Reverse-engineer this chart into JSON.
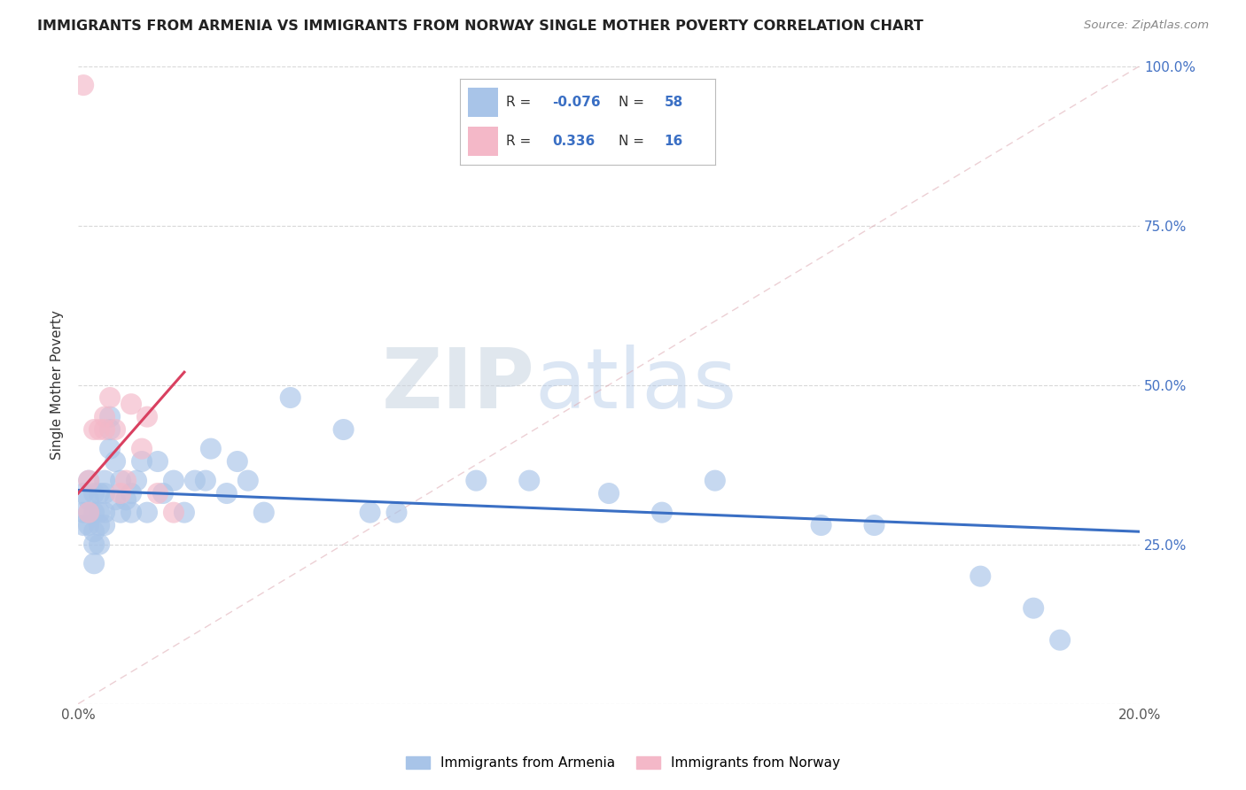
{
  "title": "IMMIGRANTS FROM ARMENIA VS IMMIGRANTS FROM NORWAY SINGLE MOTHER POVERTY CORRELATION CHART",
  "source": "Source: ZipAtlas.com",
  "ylabel": "Single Mother Poverty",
  "xlim": [
    0.0,
    0.2
  ],
  "ylim": [
    0.0,
    1.0
  ],
  "armenia_R": -0.076,
  "armenia_N": 58,
  "norway_R": 0.336,
  "norway_N": 16,
  "armenia_color": "#a8c4e8",
  "norway_color": "#f4b8c8",
  "armenia_line_color": "#3a6fc4",
  "norway_line_color": "#d94060",
  "diag_line_color": "#e0a0b0",
  "legend_label_armenia": "Immigrants from Armenia",
  "legend_label_norway": "Immigrants from Norway",
  "background_color": "#ffffff",
  "grid_color": "#d8d8d8",
  "watermark_zip": "ZIP",
  "watermark_atlas": "atlas",
  "armenia_x": [
    0.001,
    0.001,
    0.001,
    0.002,
    0.002,
    0.002,
    0.002,
    0.003,
    0.003,
    0.003,
    0.003,
    0.003,
    0.004,
    0.004,
    0.004,
    0.004,
    0.005,
    0.005,
    0.005,
    0.005,
    0.006,
    0.006,
    0.006,
    0.007,
    0.007,
    0.008,
    0.008,
    0.009,
    0.01,
    0.01,
    0.011,
    0.012,
    0.013,
    0.015,
    0.016,
    0.018,
    0.02,
    0.022,
    0.024,
    0.025,
    0.028,
    0.03,
    0.032,
    0.035,
    0.04,
    0.05,
    0.055,
    0.06,
    0.075,
    0.085,
    0.1,
    0.11,
    0.12,
    0.14,
    0.15,
    0.17,
    0.18,
    0.185
  ],
  "armenia_y": [
    0.33,
    0.3,
    0.28,
    0.35,
    0.32,
    0.3,
    0.28,
    0.33,
    0.3,
    0.27,
    0.25,
    0.22,
    0.33,
    0.3,
    0.28,
    0.25,
    0.35,
    0.33,
    0.3,
    0.28,
    0.45,
    0.43,
    0.4,
    0.38,
    0.32,
    0.35,
    0.3,
    0.32,
    0.33,
    0.3,
    0.35,
    0.38,
    0.3,
    0.38,
    0.33,
    0.35,
    0.3,
    0.35,
    0.35,
    0.4,
    0.33,
    0.38,
    0.35,
    0.3,
    0.48,
    0.43,
    0.3,
    0.3,
    0.35,
    0.35,
    0.33,
    0.3,
    0.35,
    0.28,
    0.28,
    0.2,
    0.15,
    0.1
  ],
  "norway_x": [
    0.001,
    0.002,
    0.002,
    0.003,
    0.004,
    0.005,
    0.005,
    0.006,
    0.007,
    0.008,
    0.009,
    0.01,
    0.012,
    0.013,
    0.015,
    0.018
  ],
  "norway_y": [
    0.97,
    0.35,
    0.3,
    0.43,
    0.43,
    0.45,
    0.43,
    0.48,
    0.43,
    0.33,
    0.35,
    0.47,
    0.4,
    0.45,
    0.33,
    0.3
  ],
  "norway_line_x0": 0.0,
  "norway_line_x1": 0.02,
  "norway_line_y0": 0.33,
  "norway_line_y1": 0.52,
  "armenia_line_x0": 0.0,
  "armenia_line_x1": 0.2,
  "armenia_line_y0": 0.335,
  "armenia_line_y1": 0.27
}
